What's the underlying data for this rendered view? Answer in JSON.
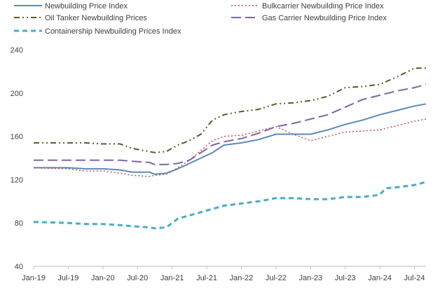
{
  "chart_data": {
    "type": "line",
    "title": "",
    "xlabel": "",
    "ylabel": "",
    "ylim": [
      40,
      240
    ],
    "yticks": [
      40,
      80,
      120,
      160,
      200,
      240
    ],
    "grid": false,
    "legend_position": "top",
    "x_tick_labels": [
      "Jan-19",
      "Jul-19",
      "Jan-20",
      "Jul-20",
      "Jan-21",
      "Jul-21",
      "Jan-22",
      "Jul-22",
      "Jan-23",
      "Jul-23",
      "Jan-24",
      "Jul-24"
    ],
    "x_start": "2019-01",
    "x_end": "2024-09",
    "series": [
      {
        "name": "Newbuilding Price Index",
        "color": "#5b8ab8",
        "dash": "solid",
        "points": [
          [
            "2019-01",
            131
          ],
          [
            "2019-07",
            131
          ],
          [
            "2019-10",
            130
          ],
          [
            "2020-01",
            130
          ],
          [
            "2020-04",
            129
          ],
          [
            "2020-06",
            127
          ],
          [
            "2020-09",
            127
          ],
          [
            "2020-10",
            125
          ],
          [
            "2020-12",
            126
          ],
          [
            "2021-02",
            130
          ],
          [
            "2021-04",
            135
          ],
          [
            "2021-06",
            140
          ],
          [
            "2021-08",
            145
          ],
          [
            "2021-10",
            152
          ],
          [
            "2022-01",
            154
          ],
          [
            "2022-04",
            157
          ],
          [
            "2022-07",
            162
          ],
          [
            "2022-10",
            162
          ],
          [
            "2023-01",
            162
          ],
          [
            "2023-04",
            166
          ],
          [
            "2023-07",
            171
          ],
          [
            "2023-10",
            175
          ],
          [
            "2024-01",
            180
          ],
          [
            "2024-04",
            184
          ],
          [
            "2024-07",
            188
          ],
          [
            "2024-09",
            190
          ]
        ]
      },
      {
        "name": "Bulkcarrier Newbuilding Price Index",
        "color": "#c0504d",
        "dash": "dotted",
        "points": [
          [
            "2019-01",
            131
          ],
          [
            "2019-07",
            130
          ],
          [
            "2019-10",
            128
          ],
          [
            "2020-01",
            128
          ],
          [
            "2020-04",
            126
          ],
          [
            "2020-06",
            124
          ],
          [
            "2020-09",
            123
          ],
          [
            "2020-10",
            124
          ],
          [
            "2020-12",
            125
          ],
          [
            "2021-02",
            131
          ],
          [
            "2021-04",
            138
          ],
          [
            "2021-06",
            147
          ],
          [
            "2021-08",
            156
          ],
          [
            "2021-10",
            160
          ],
          [
            "2022-01",
            161
          ],
          [
            "2022-04",
            165
          ],
          [
            "2022-07",
            169
          ],
          [
            "2022-10",
            162
          ],
          [
            "2023-01",
            156
          ],
          [
            "2023-04",
            160
          ],
          [
            "2023-07",
            164
          ],
          [
            "2023-10",
            165
          ],
          [
            "2024-01",
            166
          ],
          [
            "2024-04",
            170
          ],
          [
            "2024-07",
            174
          ],
          [
            "2024-09",
            176
          ]
        ]
      },
      {
        "name": "Oil Tanker Newbuilding Prices",
        "color": "#4f6228",
        "dash": "dashdot",
        "points": [
          [
            "2019-01",
            154
          ],
          [
            "2019-07",
            154
          ],
          [
            "2019-10",
            154
          ],
          [
            "2020-01",
            153
          ],
          [
            "2020-04",
            153
          ],
          [
            "2020-06",
            149
          ],
          [
            "2020-09",
            146
          ],
          [
            "2020-10",
            145
          ],
          [
            "2020-12",
            146
          ],
          [
            "2021-02",
            152
          ],
          [
            "2021-04",
            156
          ],
          [
            "2021-06",
            162
          ],
          [
            "2021-08",
            175
          ],
          [
            "2021-10",
            180
          ],
          [
            "2022-01",
            183
          ],
          [
            "2022-04",
            185
          ],
          [
            "2022-07",
            190
          ],
          [
            "2022-10",
            191
          ],
          [
            "2023-01",
            193
          ],
          [
            "2023-04",
            197
          ],
          [
            "2023-07",
            205
          ],
          [
            "2023-10",
            206
          ],
          [
            "2024-01",
            208
          ],
          [
            "2024-04",
            215
          ],
          [
            "2024-07",
            223
          ],
          [
            "2024-09",
            223
          ]
        ]
      },
      {
        "name": "Gas Carrier Newbuilding Price Index",
        "color": "#8064a2",
        "dash": "longdash",
        "points": [
          [
            "2019-01",
            138
          ],
          [
            "2019-07",
            138
          ],
          [
            "2019-10",
            138
          ],
          [
            "2020-01",
            138
          ],
          [
            "2020-04",
            138
          ],
          [
            "2020-06",
            137
          ],
          [
            "2020-09",
            136
          ],
          [
            "2020-10",
            134
          ],
          [
            "2020-12",
            134
          ],
          [
            "2021-02",
            135
          ],
          [
            "2021-04",
            138
          ],
          [
            "2021-06",
            145
          ],
          [
            "2021-08",
            152
          ],
          [
            "2021-10",
            155
          ],
          [
            "2022-01",
            158
          ],
          [
            "2022-04",
            163
          ],
          [
            "2022-07",
            169
          ],
          [
            "2022-10",
            172
          ],
          [
            "2023-01",
            176
          ],
          [
            "2023-04",
            180
          ],
          [
            "2023-07",
            187
          ],
          [
            "2023-10",
            194
          ],
          [
            "2024-01",
            198
          ],
          [
            "2024-04",
            202
          ],
          [
            "2024-07",
            205
          ],
          [
            "2024-09",
            208
          ]
        ]
      },
      {
        "name": "Containership Newbuilding Prices Index",
        "color": "#4bacc6",
        "dash": "dashed",
        "points": [
          [
            "2019-01",
            81
          ],
          [
            "2019-07",
            80
          ],
          [
            "2019-10",
            79
          ],
          [
            "2020-01",
            79
          ],
          [
            "2020-04",
            78
          ],
          [
            "2020-06",
            77
          ],
          [
            "2020-09",
            76
          ],
          [
            "2020-10",
            75
          ],
          [
            "2020-12",
            76
          ],
          [
            "2021-02",
            84
          ],
          [
            "2021-04",
            87
          ],
          [
            "2021-06",
            90
          ],
          [
            "2021-08",
            93
          ],
          [
            "2021-10",
            96
          ],
          [
            "2022-01",
            98
          ],
          [
            "2022-04",
            100
          ],
          [
            "2022-07",
            103
          ],
          [
            "2022-10",
            103
          ],
          [
            "2023-01",
            102
          ],
          [
            "2023-04",
            102
          ],
          [
            "2023-07",
            104
          ],
          [
            "2023-10",
            104
          ],
          [
            "2024-01",
            106
          ],
          [
            "2024-02",
            112
          ],
          [
            "2024-04",
            113
          ],
          [
            "2024-07",
            115
          ],
          [
            "2024-09",
            118
          ]
        ]
      }
    ]
  }
}
